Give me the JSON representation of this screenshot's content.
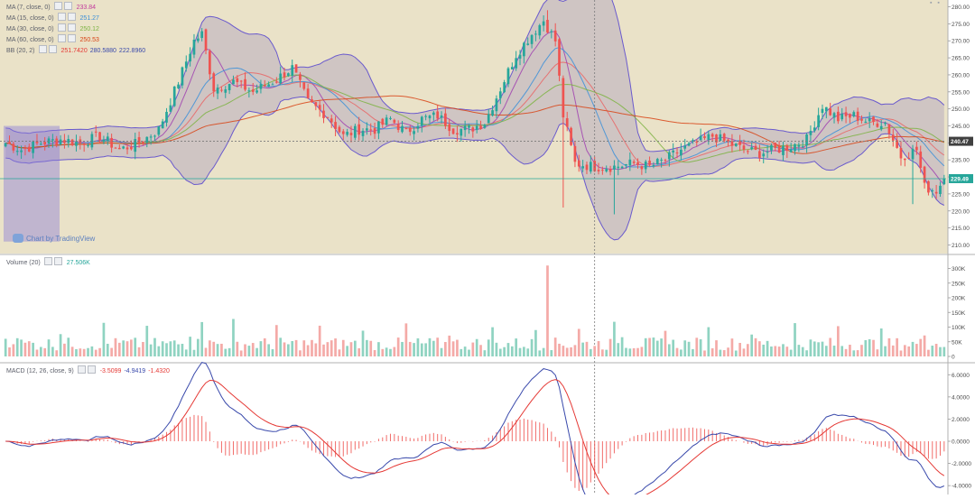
{
  "watermark": "Chart by TradingView",
  "price_pane": {
    "legend": [
      {
        "name": "MA (7, close, 0)",
        "values": [
          "233.84"
        ],
        "colors": [
          "#c23b9c"
        ]
      },
      {
        "name": "MA (15, close, 0)",
        "values": [
          "251.27"
        ],
        "colors": [
          "#3b8fd9"
        ]
      },
      {
        "name": "MA (30, close, 0)",
        "values": [
          "250.12"
        ],
        "colors": [
          "#7cb342"
        ]
      },
      {
        "name": "MA (60, close, 0)",
        "values": [
          "250.53"
        ],
        "colors": [
          "#d84315"
        ]
      },
      {
        "name": "BB (20, 2)",
        "values": [
          "251.7420",
          "280.5880",
          "222.8960"
        ],
        "colors": [
          "#e53935",
          "#3949ab",
          "#3949ab"
        ]
      }
    ],
    "axis_ticks": [
      "280.00",
      "275.00",
      "270.00",
      "265.00",
      "260.00",
      "255.00",
      "250.00",
      "245.00",
      "240.00",
      "235.00",
      "230.00",
      "225.00",
      "220.00",
      "215.00",
      "210.00"
    ],
    "price_labels": [
      {
        "text": "240.47",
        "value": 240.47,
        "color": "#404040"
      },
      {
        "text": "229.49",
        "value": 229.49,
        "color": "#26a69a"
      }
    ]
  },
  "volume_pane": {
    "legend": [
      {
        "name": "Volume (20)",
        "values": [
          "27.506K"
        ],
        "colors": [
          "#26a69a"
        ]
      }
    ],
    "axis_ticks": [
      "300K",
      "250K",
      "200K",
      "150K",
      "100K",
      "50K",
      "0"
    ]
  },
  "macd_pane": {
    "legend": [
      {
        "name": "MACD (12, 26, close, 9)",
        "values": [
          "-3.5099",
          "-4.9419",
          "-1.4320"
        ],
        "colors": [
          "#e53935",
          "#3949ab",
          "#e53935"
        ]
      }
    ],
    "axis_ticks": [
      "6.0000",
      "4.0000",
      "2.0000",
      "0.0000",
      "-2.0000",
      "-4.0000"
    ]
  },
  "colors": {
    "up": "#26a69a",
    "down": "#ef5350",
    "up_vol": "#8fd3c1",
    "down_vol": "#f4aaa7",
    "bb_line": "#6a5acd",
    "bb_fill": "#b8adbf",
    "price_bg": "#eae2c8",
    "ma7": "#a040b0",
    "ma15": "#3b8fd9",
    "ma30": "#7cb342",
    "ma60": "#d84315",
    "macd": "#3949ab",
    "signal": "#e53935",
    "hist": "#ef5350",
    "grid": "#d8d8d8"
  },
  "chart_data": {
    "type": "candlestick",
    "panes": [
      "price",
      "volume",
      "macd"
    ],
    "price": {
      "ylim": [
        208,
        282
      ],
      "ohlc_keyframes": [
        [
          0,
          240
        ],
        [
          4,
          238
        ],
        [
          9,
          240
        ],
        [
          14,
          241
        ],
        [
          19,
          240
        ],
        [
          24,
          242
        ],
        [
          29,
          238
        ],
        [
          34,
          240
        ],
        [
          39,
          244
        ],
        [
          44,
          258
        ],
        [
          48,
          270
        ],
        [
          50,
          272
        ],
        [
          53,
          256
        ],
        [
          58,
          258
        ],
        [
          63,
          255
        ],
        [
          68,
          258
        ],
        [
          73,
          262
        ],
        [
          77,
          252
        ],
        [
          82,
          248
        ],
        [
          86,
          242
        ],
        [
          90,
          244
        ],
        [
          94,
          244
        ],
        [
          98,
          247
        ],
        [
          102,
          243
        ],
        [
          106,
          247
        ],
        [
          110,
          248
        ],
        [
          114,
          244
        ],
        [
          118,
          244
        ],
        [
          122,
          246
        ],
        [
          126,
          256
        ],
        [
          130,
          266
        ],
        [
          134,
          272
        ],
        [
          137,
          276
        ],
        [
          140,
          270
        ],
        [
          142,
          248
        ],
        [
          145,
          234
        ],
        [
          150,
          233
        ],
        [
          155,
          233
        ],
        [
          160,
          234
        ],
        [
          164,
          233
        ],
        [
          168,
          235
        ],
        [
          172,
          238
        ],
        [
          176,
          240
        ],
        [
          180,
          242
        ],
        [
          184,
          240
        ],
        [
          188,
          238
        ],
        [
          192,
          237
        ],
        [
          196,
          238
        ],
        [
          200,
          239
        ],
        [
          204,
          241
        ],
        [
          208,
          251
        ],
        [
          212,
          247
        ],
        [
          216,
          248
        ],
        [
          220,
          246
        ],
        [
          224,
          246
        ],
        [
          228,
          236
        ],
        [
          232,
          238
        ],
        [
          234,
          227
        ],
        [
          237,
          226
        ],
        [
          239,
          229.49
        ]
      ],
      "bb_width": 26
    },
    "volume": {
      "ylim": [
        0,
        320000
      ],
      "units": "K",
      "spike_index": 138,
      "spike_value": 310000
    },
    "macd": {
      "ylim": [
        -4.8,
        7.0
      ]
    }
  }
}
